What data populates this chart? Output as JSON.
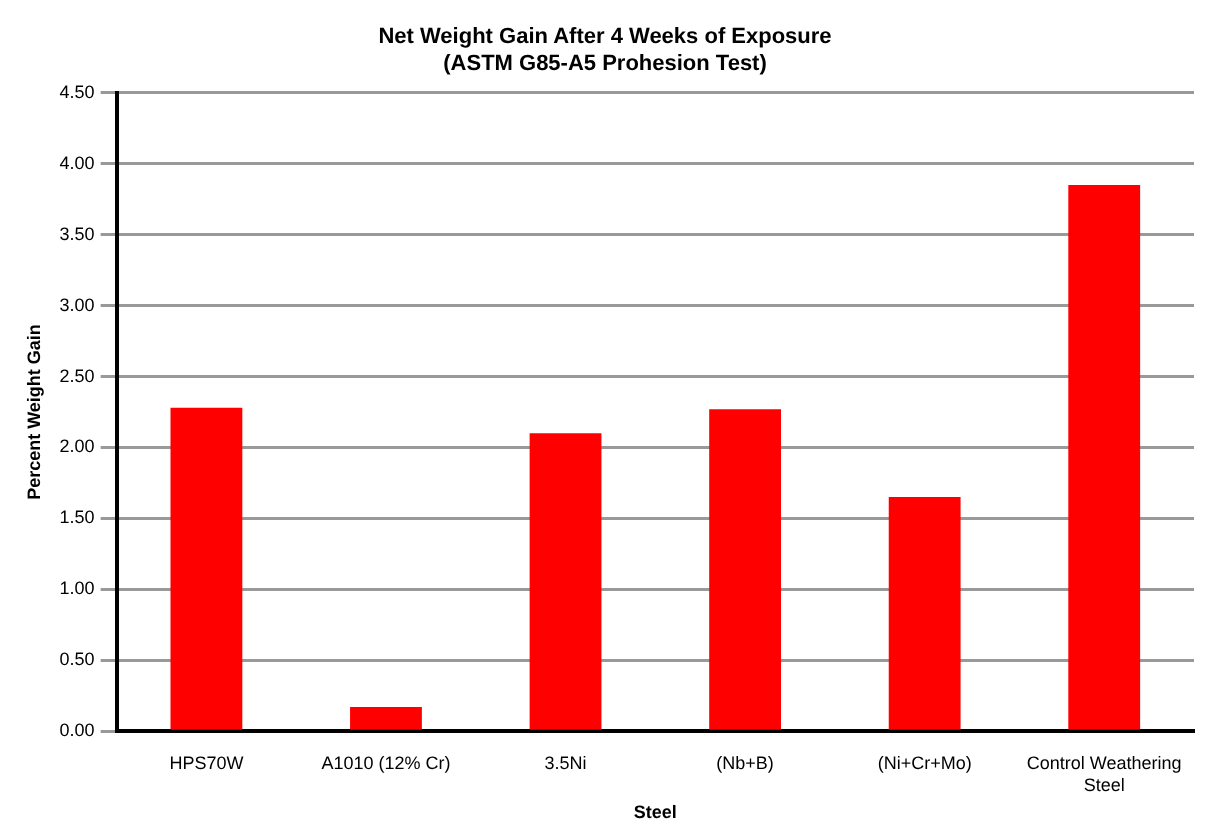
{
  "chart_data": {
    "type": "bar",
    "title": [
      "Net Weight Gain After 4 Weeks of Exposure",
      "(ASTM G85-A5 Prohesion Test)"
    ],
    "xlabel": "Steel",
    "ylabel": "Percent Weight Gain",
    "categories": [
      "HPS70W",
      "A1010 (12% Cr)",
      "3.5Ni",
      "(Nb+B)",
      "(Ni+Cr+Mo)",
      "Control Weathering Steel"
    ],
    "values": [
      2.28,
      0.17,
      2.1,
      2.27,
      1.65,
      3.85
    ],
    "color": "#ff0000",
    "ylim": [
      0,
      4.5
    ],
    "yticks": [
      {
        "value": 0,
        "label": "0.00"
      },
      {
        "value": 0.5,
        "label": "0.50"
      },
      {
        "value": 1,
        "label": "1.00"
      },
      {
        "value": 1.5,
        "label": "1.50"
      },
      {
        "value": 2,
        "label": "2.00"
      },
      {
        "value": 2.5,
        "label": "2.50"
      },
      {
        "value": 3,
        "label": "3.00"
      },
      {
        "value": 3.5,
        "label": "3.50"
      },
      {
        "value": 4,
        "label": "4.00"
      },
      {
        "value": 4.5,
        "label": "4.50"
      }
    ],
    "grid": "y"
  }
}
